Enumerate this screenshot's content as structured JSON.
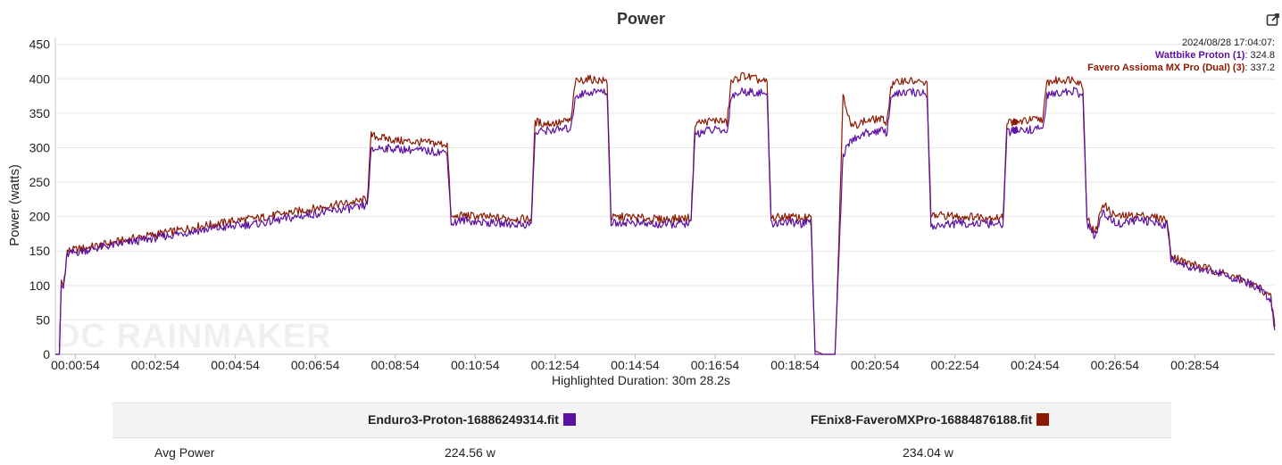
{
  "title": "Power",
  "highlighted_duration": "Highlighted Duration: 30m 28.2s",
  "watermark": "DC RAINMAKER",
  "tooltip": {
    "timestamp": "2024/08/28 17:04:07:",
    "lines": [
      {
        "name": "Wattbike Proton (1)",
        "value": ": 324.8"
      },
      {
        "name": "Favero Assioma MX Pro (Dual) (3)",
        "value": ": 337.2"
      }
    ]
  },
  "colors": {
    "wattbike": "#5b0fa3",
    "favero": "#8b1a00"
  },
  "icons": {
    "export": "export-edit-icon"
  },
  "stats": {
    "files": [
      {
        "name": "Enduro3-Proton-16886249314.fit",
        "color": "#5b0fa3"
      },
      {
        "name": "FEnix8-FaveroMXPro-16884876188.fit",
        "color": "#8b1a00"
      }
    ],
    "rows": [
      {
        "label": "Avg Power",
        "values": [
          "224.56 w",
          "234.04 w"
        ]
      }
    ]
  },
  "chart_data": {
    "type": "line",
    "title": "Power",
    "ylabel": "Power (watts)",
    "xlabel": "",
    "ylim": [
      0,
      460
    ],
    "xlim_minutes": [
      0.4,
      30.9
    ],
    "y_ticks": [
      0,
      50,
      100,
      150,
      200,
      250,
      300,
      350,
      400,
      450
    ],
    "x_ticks": [
      {
        "t": 0.9,
        "label": "00:00:54"
      },
      {
        "t": 2.9,
        "label": "00:02:54"
      },
      {
        "t": 4.9,
        "label": "00:04:54"
      },
      {
        "t": 6.9,
        "label": "00:06:54"
      },
      {
        "t": 8.9,
        "label": "00:08:54"
      },
      {
        "t": 10.9,
        "label": "00:10:54"
      },
      {
        "t": 12.9,
        "label": "00:12:54"
      },
      {
        "t": 14.9,
        "label": "00:14:54"
      },
      {
        "t": 16.9,
        "label": "00:16:54"
      },
      {
        "t": 18.9,
        "label": "00:18:54"
      },
      {
        "t": 20.9,
        "label": "00:20:54"
      },
      {
        "t": 22.9,
        "label": "00:22:54"
      },
      {
        "t": 24.9,
        "label": "00:24:54"
      },
      {
        "t": 26.9,
        "label": "00:26:54"
      },
      {
        "t": 28.9,
        "label": "00:28:54"
      }
    ],
    "grid": true,
    "legend_position": "top-right",
    "highlight_point_t": 24.4,
    "series": [
      {
        "name": "Wattbike Proton (1)",
        "color": "#5b0fa3",
        "points": [
          [
            0.4,
            0
          ],
          [
            0.5,
            0
          ],
          [
            0.55,
            100
          ],
          [
            0.6,
            95
          ],
          [
            0.7,
            145
          ],
          [
            0.9,
            148
          ],
          [
            1.5,
            155
          ],
          [
            2.0,
            160
          ],
          [
            2.5,
            165
          ],
          [
            3.0,
            170
          ],
          [
            3.5,
            175
          ],
          [
            4.0,
            180
          ],
          [
            4.5,
            183
          ],
          [
            5.0,
            187
          ],
          [
            5.5,
            190
          ],
          [
            6.0,
            195
          ],
          [
            6.5,
            200
          ],
          [
            7.0,
            205
          ],
          [
            7.5,
            210
          ],
          [
            8.0,
            213
          ],
          [
            8.2,
            216
          ],
          [
            8.3,
            295
          ],
          [
            8.5,
            300
          ],
          [
            9.0,
            298
          ],
          [
            9.5,
            296
          ],
          [
            10.2,
            293
          ],
          [
            10.3,
            190
          ],
          [
            10.6,
            195
          ],
          [
            11.0,
            192
          ],
          [
            11.5,
            190
          ],
          [
            12.3,
            188
          ],
          [
            12.4,
            320
          ],
          [
            12.6,
            325
          ],
          [
            13.0,
            326
          ],
          [
            13.3,
            328
          ],
          [
            13.4,
            375
          ],
          [
            13.7,
            380
          ],
          [
            14.0,
            382
          ],
          [
            14.2,
            380
          ],
          [
            14.3,
            190
          ],
          [
            14.7,
            192
          ],
          [
            15.0,
            190
          ],
          [
            15.5,
            188
          ],
          [
            16.3,
            190
          ],
          [
            16.4,
            320
          ],
          [
            16.7,
            325
          ],
          [
            17.0,
            326
          ],
          [
            17.2,
            322
          ],
          [
            17.3,
            375
          ],
          [
            17.6,
            382
          ],
          [
            18.0,
            380
          ],
          [
            18.2,
            378
          ],
          [
            18.3,
            190
          ],
          [
            18.7,
            192
          ],
          [
            19.0,
            190
          ],
          [
            19.3,
            190
          ],
          [
            19.4,
            0
          ],
          [
            19.6,
            0
          ],
          [
            19.9,
            0
          ],
          [
            20.0,
            150
          ],
          [
            20.1,
            290
          ],
          [
            20.3,
            310
          ],
          [
            20.6,
            320
          ],
          [
            21.0,
            325
          ],
          [
            21.2,
            322
          ],
          [
            21.3,
            375
          ],
          [
            21.6,
            380
          ],
          [
            22.0,
            380
          ],
          [
            22.2,
            378
          ],
          [
            22.3,
            185
          ],
          [
            22.6,
            188
          ],
          [
            23.0,
            190
          ],
          [
            23.5,
            190
          ],
          [
            24.1,
            188
          ],
          [
            24.2,
            322
          ],
          [
            24.4,
            324.8
          ],
          [
            24.8,
            326
          ],
          [
            25.1,
            328
          ],
          [
            25.2,
            375
          ],
          [
            25.5,
            380
          ],
          [
            25.9,
            382
          ],
          [
            26.1,
            375
          ],
          [
            26.2,
            190
          ],
          [
            26.4,
            170
          ],
          [
            26.6,
            205
          ],
          [
            26.8,
            195
          ],
          [
            27.0,
            190
          ],
          [
            27.5,
            195
          ],
          [
            28.0,
            190
          ],
          [
            28.2,
            188
          ],
          [
            28.3,
            140
          ],
          [
            28.6,
            130
          ],
          [
            29.0,
            125
          ],
          [
            29.5,
            118
          ],
          [
            30.0,
            108
          ],
          [
            30.5,
            95
          ],
          [
            30.8,
            80
          ],
          [
            30.9,
            35
          ]
        ]
      },
      {
        "name": "Favero Assioma MX Pro (Dual) (3)",
        "color": "#8b1a00",
        "points": [
          [
            0.4,
            0
          ],
          [
            0.5,
            0
          ],
          [
            0.55,
            105
          ],
          [
            0.6,
            100
          ],
          [
            0.7,
            150
          ],
          [
            0.9,
            152
          ],
          [
            1.5,
            158
          ],
          [
            2.0,
            164
          ],
          [
            2.5,
            170
          ],
          [
            3.0,
            175
          ],
          [
            3.5,
            180
          ],
          [
            4.0,
            186
          ],
          [
            4.5,
            190
          ],
          [
            5.0,
            195
          ],
          [
            5.5,
            198
          ],
          [
            6.0,
            203
          ],
          [
            6.5,
            208
          ],
          [
            7.0,
            213
          ],
          [
            7.5,
            218
          ],
          [
            8.0,
            222
          ],
          [
            8.2,
            226
          ],
          [
            8.3,
            318
          ],
          [
            8.5,
            315
          ],
          [
            9.0,
            310
          ],
          [
            9.5,
            308
          ],
          [
            10.2,
            305
          ],
          [
            10.3,
            198
          ],
          [
            10.6,
            202
          ],
          [
            11.0,
            200
          ],
          [
            11.5,
            198
          ],
          [
            12.3,
            196
          ],
          [
            12.4,
            338
          ],
          [
            12.6,
            335
          ],
          [
            13.0,
            336
          ],
          [
            13.3,
            340
          ],
          [
            13.4,
            395
          ],
          [
            13.7,
            400
          ],
          [
            14.0,
            398
          ],
          [
            14.2,
            396
          ],
          [
            14.3,
            198
          ],
          [
            14.7,
            200
          ],
          [
            15.0,
            198
          ],
          [
            15.5,
            196
          ],
          [
            16.3,
            198
          ],
          [
            16.4,
            336
          ],
          [
            16.7,
            338
          ],
          [
            17.0,
            340
          ],
          [
            17.2,
            336
          ],
          [
            17.3,
            395
          ],
          [
            17.6,
            405
          ],
          [
            18.0,
            398
          ],
          [
            18.2,
            395
          ],
          [
            18.3,
            198
          ],
          [
            18.7,
            200
          ],
          [
            19.0,
            198
          ],
          [
            19.3,
            198
          ],
          [
            19.4,
            5
          ],
          [
            19.6,
            0
          ],
          [
            19.9,
            0
          ],
          [
            20.0,
            170
          ],
          [
            20.1,
            380
          ],
          [
            20.3,
            330
          ],
          [
            20.6,
            338
          ],
          [
            21.0,
            342
          ],
          [
            21.2,
            338
          ],
          [
            21.3,
            390
          ],
          [
            21.6,
            398
          ],
          [
            22.0,
            395
          ],
          [
            22.2,
            392
          ],
          [
            22.3,
            200
          ],
          [
            22.6,
            202
          ],
          [
            23.0,
            200
          ],
          [
            23.5,
            200
          ],
          [
            24.1,
            198
          ],
          [
            24.2,
            338
          ],
          [
            24.4,
            337.2
          ],
          [
            24.8,
            340
          ],
          [
            25.1,
            342
          ],
          [
            25.2,
            395
          ],
          [
            25.5,
            398
          ],
          [
            25.9,
            400
          ],
          [
            26.1,
            390
          ],
          [
            26.2,
            200
          ],
          [
            26.4,
            175
          ],
          [
            26.6,
            220
          ],
          [
            26.8,
            205
          ],
          [
            27.0,
            200
          ],
          [
            27.5,
            202
          ],
          [
            28.0,
            198
          ],
          [
            28.2,
            196
          ],
          [
            28.3,
            145
          ],
          [
            28.6,
            135
          ],
          [
            29.0,
            128
          ],
          [
            29.5,
            120
          ],
          [
            30.0,
            110
          ],
          [
            30.5,
            98
          ],
          [
            30.8,
            82
          ],
          [
            30.9,
            40
          ]
        ]
      }
    ]
  }
}
